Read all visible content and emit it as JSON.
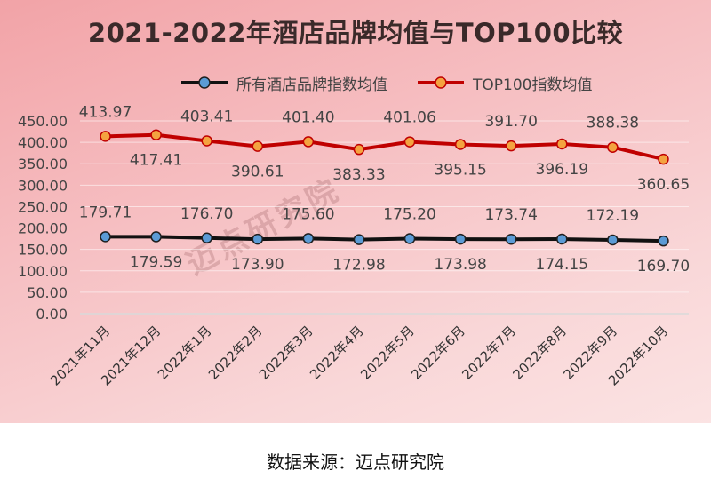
{
  "chart_data": {
    "type": "line",
    "title": "2021-2022年酒店品牌均值与TOP100比较",
    "categories": [
      "2021年11月",
      "2021年12月",
      "2022年1月",
      "2022年2月",
      "2022年3月",
      "2022年4月",
      "2022年5月",
      "2022年6月",
      "2022年7月",
      "2022年8月",
      "2022年9月",
      "2022年10月"
    ],
    "series": [
      {
        "name": "所有酒店品牌指数均值",
        "values": [
          179.71,
          179.59,
          176.7,
          173.9,
          175.6,
          172.98,
          175.2,
          173.98,
          173.74,
          174.15,
          172.19,
          169.7
        ],
        "value_labels": [
          "179.71",
          "179.59",
          "176.70",
          "173.90",
          "175.60",
          "172.98",
          "175.20",
          "173.98",
          "173.74",
          "174.15",
          "172.19",
          "169.70"
        ],
        "line_color": "#111111",
        "marker_color": "#5b9bd5"
      },
      {
        "name": "TOP100指数均值",
        "values": [
          413.97,
          417.41,
          403.41,
          390.61,
          401.4,
          383.33,
          401.06,
          395.15,
          391.7,
          396.19,
          388.38,
          360.65
        ],
        "value_labels": [
          "413.97",
          "417.41",
          "403.41",
          "390.61",
          "401.40",
          "383.33",
          "401.06",
          "395.15",
          "391.70",
          "396.19",
          "388.38",
          "360.65"
        ],
        "line_color": "#c00000",
        "marker_color": "#f4a340"
      }
    ],
    "ylim": [
      0,
      450
    ],
    "yticks": [
      0,
      50,
      100,
      150,
      200,
      250,
      300,
      350,
      400,
      450
    ],
    "ytick_labels": [
      "0.00",
      "50.00",
      "100.00",
      "150.00",
      "200.00",
      "250.00",
      "300.00",
      "350.00",
      "400.00",
      "450.00"
    ],
    "grid": true,
    "legend_position": "top"
  },
  "watermark": "迈点研究院",
  "source_note": "数据来源：迈点研究院"
}
